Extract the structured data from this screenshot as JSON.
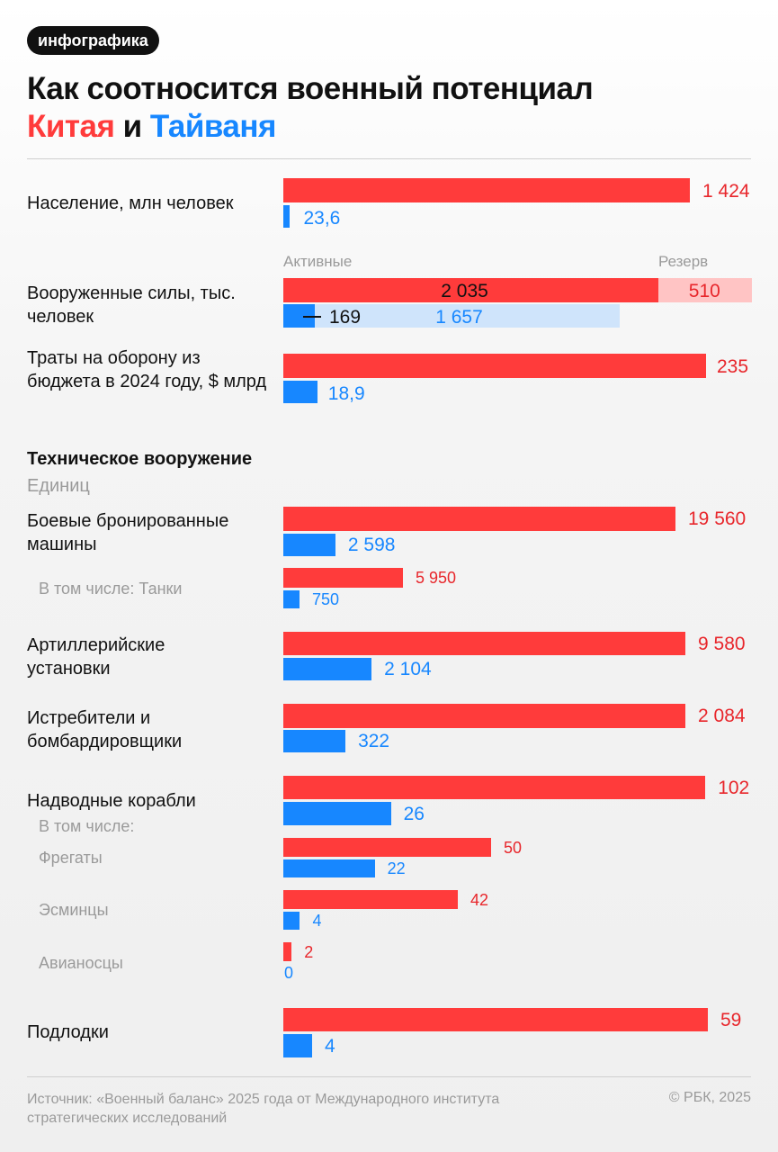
{
  "badge": "инфографика",
  "title": {
    "line1": "Как соотносится военный потенциал",
    "china": "Китая",
    "and": " и ",
    "taiwan": "Тайваня"
  },
  "colors": {
    "china": "#ff3b3b",
    "taiwan": "#1787ff",
    "china_reserve": "#ffc4c4",
    "taiwan_reserve": "#cfe4fb"
  },
  "tech": {
    "title": "Техническое вооружение",
    "units": "Единиц"
  },
  "armed_forces_columns": {
    "active": "Активные",
    "reserve": "Резерв"
  },
  "footer": {
    "source": "Источник: «Военный баланс» 2025 года от Международного института стратегических исследований",
    "copyright": "© РБК, 2025"
  },
  "chart_data": [
    {
      "type": "bar",
      "group": "general",
      "categories": [
        "Население, млн человек",
        "Вооруженные силы, тыс. человек",
        "Траты на оборону из бюджета в 2024 году, $ млрд"
      ],
      "series": [
        {
          "name": "Китая",
          "values": [
            1424,
            2035,
            235
          ],
          "labels": [
            "1 424",
            "2 035",
            "235"
          ]
        },
        {
          "name": "Тайваня",
          "values": [
            23.6,
            169,
            18.9
          ],
          "labels": [
            "23,6",
            "169",
            "18,9"
          ]
        }
      ],
      "reserve": {
        "china": 510,
        "china_label": "510",
        "taiwan": 1657,
        "taiwan_label": "1 657"
      }
    },
    {
      "type": "bar",
      "group": "technical",
      "categories": [
        "Боевые бронированные машины",
        "В том числе: Танки",
        "Артиллерийские установки",
        "Истребители и бомбардировщики",
        "Надводные корабли",
        "Фрегаты",
        "Эсминцы",
        "Авианосцы",
        "Подлодки"
      ],
      "series": [
        {
          "name": "Китая",
          "values": [
            19560,
            5950,
            9580,
            2084,
            102,
            50,
            42,
            2,
            59
          ],
          "labels": [
            "19 560",
            "5 950",
            "9 580",
            "2 084",
            "102",
            "50",
            "42",
            "2",
            "59"
          ]
        },
        {
          "name": "Тайваня",
          "values": [
            2598,
            750,
            2104,
            322,
            26,
            22,
            4,
            0,
            4
          ],
          "labels": [
            "2 598",
            "750",
            "2 104",
            "322",
            "26",
            "22",
            "4",
            "0",
            "4"
          ]
        }
      ],
      "annotations": [
        "В том числе:"
      ]
    }
  ]
}
